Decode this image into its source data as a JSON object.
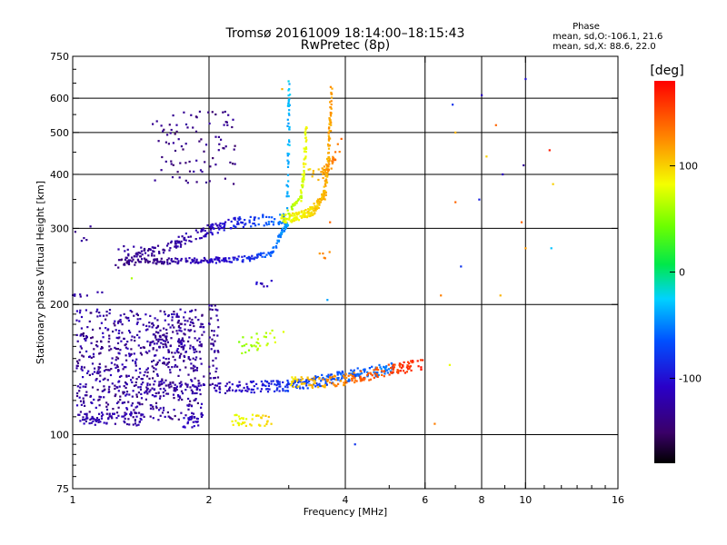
{
  "chart_data": {
    "type": "scatter",
    "title": "Tromsø 20161009 18:14:00–18:15:43",
    "subtitle": "RwPretec (8p)",
    "xlabel": "Frequency [MHz]",
    "ylabel": "Stationary phase Virtual Height [km]",
    "x_scale": "log",
    "y_scale": "log",
    "xlim": [
      1,
      16
    ],
    "ylim": [
      75,
      750
    ],
    "x_ticks": [
      "1",
      "2",
      "4",
      "6",
      "8",
      "10",
      "16"
    ],
    "x_tick_values": [
      1,
      2,
      4,
      6,
      8,
      10,
      16
    ],
    "x_grid_values": [
      2,
      4,
      6,
      8,
      10
    ],
    "y_ticks": [
      "75",
      "100",
      "200",
      "300",
      "400",
      "500",
      "600",
      "750"
    ],
    "y_tick_values": [
      75,
      100,
      200,
      300,
      400,
      500,
      600,
      750
    ],
    "y_grid_values": [
      100,
      200,
      300,
      400,
      500,
      600
    ],
    "grid": true,
    "stats": {
      "title": "Phase",
      "line1": "mean, sd,O:-106.1, 21.6",
      "line2": "mean, sd,X: 88.6, 22.0"
    },
    "colorbar": {
      "label": "[deg]",
      "range": [
        -180,
        180
      ],
      "ticks": [
        "100",
        "0",
        "-100"
      ],
      "tick_values": [
        100,
        0,
        -100
      ],
      "colormap": "rainbow"
    },
    "features": [
      {
        "kind": "band",
        "fmin": 1.02,
        "fmax": 1.95,
        "hmin": 108,
        "hmax": 195,
        "phase": [
          -145,
          -110
        ],
        "n": 650
      },
      {
        "kind": "band",
        "fmin": 1.02,
        "fmax": 1.45,
        "hmin": 105,
        "hmax": 112,
        "phase": [
          -130,
          -110
        ],
        "n": 70
      },
      {
        "kind": "band",
        "fmin": 1.5,
        "fmax": 1.95,
        "hmin": 145,
        "hmax": 185,
        "phase": [
          -140,
          -120
        ],
        "n": 80
      },
      {
        "kind": "band",
        "fmin": 1.75,
        "fmax": 1.9,
        "hmin": 104,
        "hmax": 110,
        "phase": [
          -120,
          -100
        ],
        "n": 20
      },
      {
        "kind": "band",
        "fmin": 2.0,
        "fmax": 2.1,
        "hmin": 135,
        "hmax": 200,
        "phase": [
          -140,
          -120
        ],
        "n": 40
      },
      {
        "kind": "curve",
        "f": [
          1.4,
          2.0,
          2.5,
          3.0,
          3.5,
          4.2,
          5.1
        ],
        "h": [
          128,
          128,
          129,
          130,
          133,
          138,
          143
        ],
        "phase": [
          -125,
          -125,
          -100,
          -80,
          -70,
          -60,
          -50
        ],
        "n": 320,
        "jit": 0.03
      },
      {
        "kind": "curve",
        "f": [
          3.0,
          3.4,
          3.8,
          4.3,
          4.8,
          5.4,
          5.9
        ],
        "h": [
          132,
          132,
          133,
          136,
          140,
          143,
          145
        ],
        "phase": [
          95,
          110,
          125,
          140,
          150,
          160,
          165
        ],
        "n": 180,
        "jit": 0.03
      },
      {
        "kind": "curve",
        "f": [
          2.25,
          2.4,
          2.6,
          2.75
        ],
        "h": [
          108,
          108,
          108,
          108
        ],
        "phase": [
          80,
          85,
          95,
          100
        ],
        "n": 40,
        "jit": 0.03
      },
      {
        "kind": "curve",
        "f": [
          2.3,
          2.5,
          2.7,
          2.95
        ],
        "h": [
          160,
          163,
          166,
          168
        ],
        "phase": [
          50,
          60,
          70,
          75
        ],
        "n": 30,
        "jit": 0.05
      },
      {
        "kind": "curve",
        "f": [
          1.3,
          1.6,
          2.0,
          2.4,
          2.75,
          2.98,
          3.01
        ],
        "h": [
          250,
          252,
          253,
          255,
          263,
          310,
          650
        ],
        "phase": [
          -140,
          -130,
          -110,
          -90,
          -60,
          -40,
          -30
        ],
        "n": 260,
        "jit": 0.015
      },
      {
        "kind": "curve",
        "f": [
          1.25,
          1.5,
          1.8,
          2.05,
          2.3,
          2.6,
          2.95
        ],
        "h": [
          250,
          265,
          285,
          300,
          310,
          313,
          315
        ],
        "phase": [
          -140,
          -130,
          -120,
          -110,
          -90,
          -70,
          -50
        ],
        "n": 200,
        "jit": 0.03
      },
      {
        "kind": "curve",
        "f": [
          2.9,
          3.2,
          3.4,
          3.6,
          3.68,
          3.72
        ],
        "h": [
          315,
          320,
          330,
          360,
          450,
          640
        ],
        "phase": [
          80,
          90,
          100,
          110,
          115,
          120
        ],
        "n": 260,
        "jit": 0.025
      },
      {
        "kind": "curve",
        "f": [
          3.0,
          3.18,
          3.25,
          3.28
        ],
        "h": [
          330,
          350,
          420,
          520
        ],
        "phase": [
          60,
          70,
          80,
          85
        ],
        "n": 80,
        "jit": 0.02
      },
      {
        "kind": "curve",
        "f": [
          3.3,
          3.5,
          3.65,
          3.8,
          3.9
        ],
        "h": [
          400,
          400,
          410,
          440,
          470
        ],
        "phase": [
          100,
          110,
          120,
          130,
          140
        ],
        "n": 40,
        "jit": 0.03
      },
      {
        "kind": "band",
        "fmin": 1.5,
        "fmax": 2.3,
        "hmin": 380,
        "hmax": 560,
        "phase": [
          -150,
          -125
        ],
        "n": 90
      },
      {
        "kind": "band",
        "fmin": 1.25,
        "fmax": 1.5,
        "hmin": 255,
        "hmax": 275,
        "phase": [
          -135,
          -120
        ],
        "n": 15
      },
      {
        "kind": "band",
        "fmin": 1.0,
        "fmax": 1.2,
        "hmin": 208,
        "hmax": 214,
        "phase": [
          -130,
          -120
        ],
        "n": 8
      },
      {
        "kind": "band",
        "fmin": 1.0,
        "fmax": 1.1,
        "hmin": 280,
        "hmax": 310,
        "phase": [
          -140,
          -120
        ],
        "n": 5
      },
      {
        "kind": "band",
        "fmin": 2.5,
        "fmax": 2.75,
        "hmin": 220,
        "hmax": 230,
        "phase": [
          -120,
          -100
        ],
        "n": 8
      },
      {
        "kind": "band",
        "fmin": 3.5,
        "fmax": 3.75,
        "hmin": 255,
        "hmax": 265,
        "phase": [
          120,
          135
        ],
        "n": 5
      }
    ],
    "scatter_points": [
      {
        "f": 6.5,
        "h": 210,
        "phase": 130
      },
      {
        "f": 6.9,
        "h": 580,
        "phase": -80
      },
      {
        "f": 7.0,
        "h": 500,
        "phase": 110
      },
      {
        "f": 7.0,
        "h": 345,
        "phase": 140
      },
      {
        "f": 7.2,
        "h": 245,
        "phase": -80
      },
      {
        "f": 6.3,
        "h": 106,
        "phase": 130
      },
      {
        "f": 6.8,
        "h": 145,
        "phase": 80
      },
      {
        "f": 7.9,
        "h": 350,
        "phase": -90
      },
      {
        "f": 8.0,
        "h": 610,
        "phase": -110
      },
      {
        "f": 8.2,
        "h": 440,
        "phase": 100
      },
      {
        "f": 8.6,
        "h": 520,
        "phase": 140
      },
      {
        "f": 8.8,
        "h": 210,
        "phase": 110
      },
      {
        "f": 8.9,
        "h": 400,
        "phase": -110
      },
      {
        "f": 9.8,
        "h": 310,
        "phase": 140
      },
      {
        "f": 9.9,
        "h": 420,
        "phase": -130
      },
      {
        "f": 10.0,
        "h": 665,
        "phase": -100
      },
      {
        "f": 10.0,
        "h": 270,
        "phase": 120
      },
      {
        "f": 11.3,
        "h": 455,
        "phase": 170
      },
      {
        "f": 11.4,
        "h": 270,
        "phase": -30
      },
      {
        "f": 11.5,
        "h": 380,
        "phase": 100
      },
      {
        "f": 4.2,
        "h": 95,
        "phase": -80
      },
      {
        "f": 3.65,
        "h": 205,
        "phase": -40
      },
      {
        "f": 3.7,
        "h": 310,
        "phase": 140
      },
      {
        "f": 2.9,
        "h": 630,
        "phase": 110
      },
      {
        "f": 1.35,
        "h": 230,
        "phase": 60
      }
    ]
  }
}
